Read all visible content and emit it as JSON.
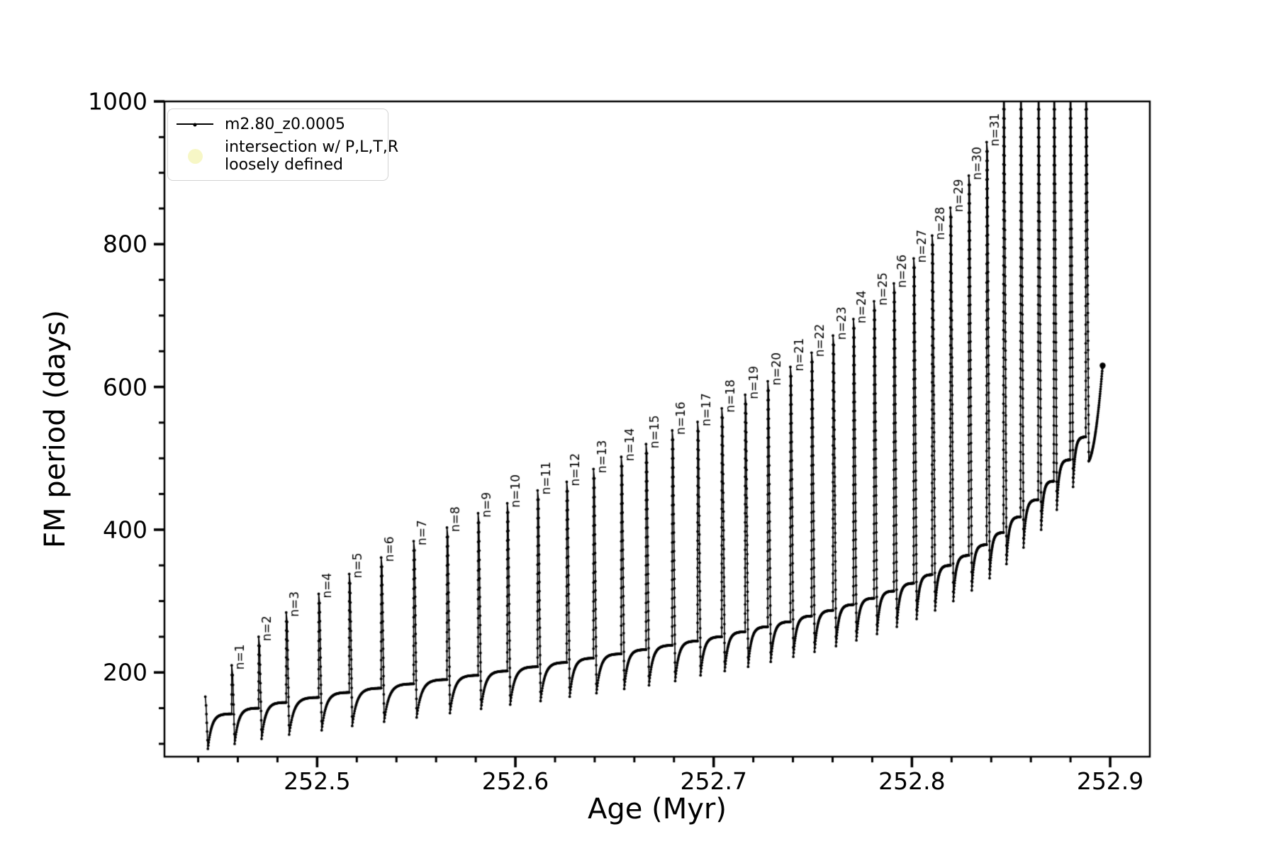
{
  "figure": {
    "background": "#ffffff",
    "line_color": "#000000",
    "legend_marker_color": "#f7f7c6"
  },
  "chart_data": {
    "type": "line",
    "title": "",
    "xlabel": "Age (Myr)",
    "ylabel": "FM period (days)",
    "xlim": [
      252.423,
      252.92
    ],
    "ylim": [
      82,
      1000
    ],
    "grid": false,
    "xticks": [
      252.5,
      252.6,
      252.7,
      252.8,
      252.9
    ],
    "xtick_labels": [
      "252.5",
      "252.6",
      "252.7",
      "252.8",
      "252.9"
    ],
    "yticks": [
      200,
      400,
      600,
      800,
      1000
    ],
    "ytick_labels": [
      "200",
      "400",
      "600",
      "800",
      "1000"
    ],
    "x_minor_step": 0.02,
    "y_minor_step": 50,
    "legend": {
      "position": "upper-left",
      "entries": [
        {
          "label": "m2.80_z0.0005",
          "marker": "line-with-dot",
          "color": "#000000"
        },
        {
          "label_line1": "intersection w/ P,L,T,R",
          "label_line2": "loosely defined",
          "marker": "filled-circle",
          "color": "#f7f7c6"
        }
      ]
    },
    "series_name": "m2.80_z0.0005",
    "start": {
      "age": 252.4436,
      "period": 166
    },
    "end": {
      "age": 252.8962,
      "period": 630
    },
    "cycles": [
      {
        "label": null,
        "age": 252.4436,
        "peak": 166,
        "dip": 93,
        "plateau": 142
      },
      {
        "label": "n=1",
        "age": 252.4571,
        "peak": 210,
        "dip": 100,
        "plateau": 150
      },
      {
        "label": "n=2",
        "age": 252.4707,
        "peak": 250,
        "dip": 107,
        "plateau": 158
      },
      {
        "label": "n=3",
        "age": 252.4846,
        "peak": 284,
        "dip": 113,
        "plateau": 165
      },
      {
        "label": "n=4",
        "age": 252.501,
        "peak": 310,
        "dip": 119,
        "plateau": 172
      },
      {
        "label": "n=5",
        "age": 252.5164,
        "peak": 338,
        "dip": 125,
        "plateau": 178
      },
      {
        "label": "n=6",
        "age": 252.5325,
        "peak": 361,
        "dip": 131,
        "plateau": 184
      },
      {
        "label": "n=7",
        "age": 252.5489,
        "peak": 384,
        "dip": 137,
        "plateau": 190
      },
      {
        "label": "n=8",
        "age": 252.5657,
        "peak": 403,
        "dip": 143,
        "plateau": 196
      },
      {
        "label": "n=9",
        "age": 252.5814,
        "peak": 423,
        "dip": 149,
        "plateau": 202
      },
      {
        "label": "n=10",
        "age": 252.5961,
        "peak": 437,
        "dip": 155,
        "plateau": 208
      },
      {
        "label": "n=11",
        "age": 252.6114,
        "peak": 455,
        "dip": 160,
        "plateau": 214
      },
      {
        "label": "n=12",
        "age": 252.6261,
        "peak": 467,
        "dip": 166,
        "plateau": 220
      },
      {
        "label": "n=13",
        "age": 252.6396,
        "peak": 485,
        "dip": 171,
        "plateau": 226
      },
      {
        "label": "n=14",
        "age": 252.6536,
        "peak": 502,
        "dip": 177,
        "plateau": 232
      },
      {
        "label": "n=15",
        "age": 252.6661,
        "peak": 520,
        "dip": 182,
        "plateau": 238
      },
      {
        "label": "n=16",
        "age": 252.6793,
        "peak": 539,
        "dip": 188,
        "plateau": 244
      },
      {
        "label": "n=17",
        "age": 252.6921,
        "peak": 551,
        "dip": 196,
        "plateau": 250
      },
      {
        "label": "n=18",
        "age": 252.7043,
        "peak": 570,
        "dip": 202,
        "plateau": 257
      },
      {
        "label": "n=19",
        "age": 252.7161,
        "peak": 589,
        "dip": 208,
        "plateau": 264
      },
      {
        "label": "n=20",
        "age": 252.7275,
        "peak": 608,
        "dip": 215,
        "plateau": 271
      },
      {
        "label": "n=21",
        "age": 252.7389,
        "peak": 628,
        "dip": 222,
        "plateau": 279
      },
      {
        "label": "n=22",
        "age": 252.7496,
        "peak": 648,
        "dip": 229,
        "plateau": 287
      },
      {
        "label": "n=23",
        "age": 252.7604,
        "peak": 672,
        "dip": 237,
        "plateau": 295
      },
      {
        "label": "n=24",
        "age": 252.7707,
        "peak": 695,
        "dip": 245,
        "plateau": 304
      },
      {
        "label": "n=25",
        "age": 252.7811,
        "peak": 720,
        "dip": 254,
        "plateau": 314
      },
      {
        "label": "n=26",
        "age": 252.7911,
        "peak": 745,
        "dip": 264,
        "plateau": 325
      },
      {
        "label": "n=27",
        "age": 252.8011,
        "peak": 780,
        "dip": 275,
        "plateau": 337
      },
      {
        "label": "n=28",
        "age": 252.8104,
        "peak": 812,
        "dip": 287,
        "plateau": 350
      },
      {
        "label": "n=29",
        "age": 252.8196,
        "peak": 851,
        "dip": 300,
        "plateau": 364
      },
      {
        "label": "n=30",
        "age": 252.8289,
        "peak": 896,
        "dip": 315,
        "plateau": 379
      },
      {
        "label": "n=31",
        "age": 252.8379,
        "peak": 943,
        "dip": 332,
        "plateau": 396
      },
      {
        "label": null,
        "age": 252.8464,
        "peak": 1015,
        "dip": 352,
        "plateau": 418,
        "clipped": true
      },
      {
        "label": null,
        "age": 252.855,
        "peak": 1015,
        "dip": 375,
        "plateau": 442,
        "clipped": true
      },
      {
        "label": null,
        "age": 252.8639,
        "peak": 1015,
        "dip": 400,
        "plateau": 468,
        "clipped": true
      },
      {
        "label": null,
        "age": 252.8718,
        "peak": 1015,
        "dip": 428,
        "plateau": 498,
        "clipped": true
      },
      {
        "label": null,
        "age": 252.88,
        "peak": 1015,
        "dip": 460,
        "plateau": 530,
        "clipped": true
      },
      {
        "label": null,
        "age": 252.8879,
        "peak": 1015,
        "dip": 496,
        "plateau": 630,
        "clipped": true
      }
    ]
  }
}
